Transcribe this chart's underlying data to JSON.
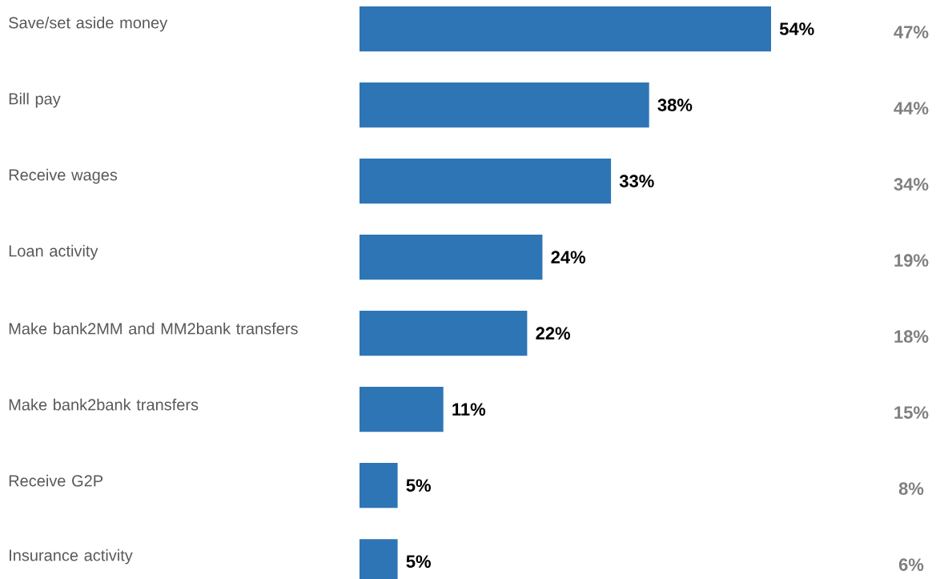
{
  "chart_data": {
    "type": "bar",
    "orientation": "horizontal",
    "categories": [
      "Save/set aside money",
      "Bill pay",
      "Receive wages",
      "Loan activity",
      "Make bank2MM and MM2bank transfers",
      "Make bank2bank transfers",
      "Receive G2P",
      "Insurance activity"
    ],
    "values": [
      54,
      38,
      33,
      24,
      22,
      11,
      5,
      5
    ],
    "value_labels": [
      "54%",
      "38%",
      "33%",
      "24%",
      "22%",
      "11%",
      "5%",
      "5%"
    ],
    "color": "#2e75b6",
    "annotations": [
      "47%",
      "44%",
      "34%",
      "19%",
      "18%",
      "15%",
      "8%",
      "6%"
    ]
  }
}
